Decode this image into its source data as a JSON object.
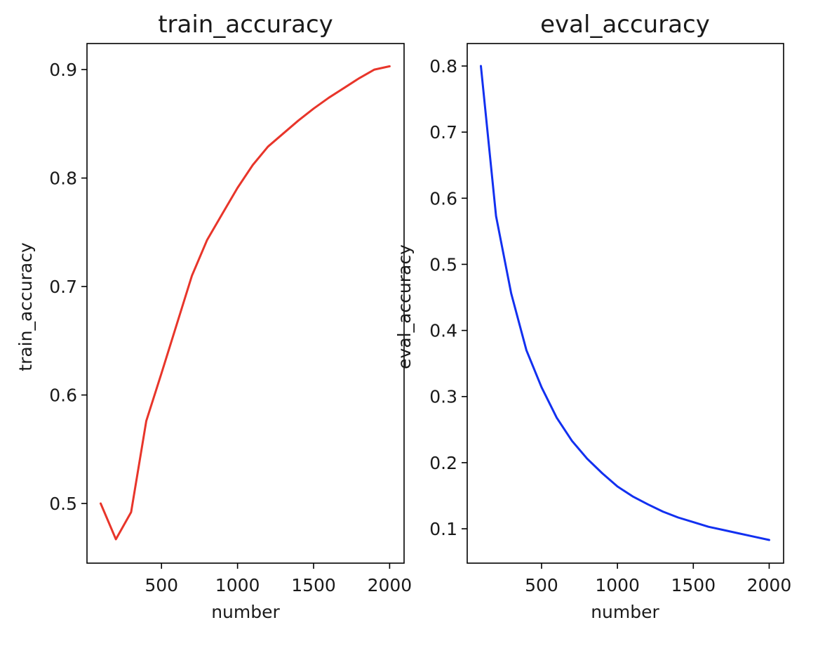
{
  "chart_data": [
    {
      "type": "line",
      "title": "train_accuracy",
      "xlabel": "number",
      "ylabel": "train_accuracy",
      "xlim": [
        10,
        2095
      ],
      "ylim": [
        0.445,
        0.924
      ],
      "xticks": [
        500,
        1000,
        1500,
        2000
      ],
      "yticks": [
        0.5,
        0.6,
        0.7,
        0.8,
        0.9
      ],
      "xtick_labels": [
        "500",
        "1000",
        "1500",
        "2000"
      ],
      "ytick_labels": [
        "0.5",
        "0.6",
        "0.7",
        "0.8",
        "0.9"
      ],
      "grid": false,
      "series": [
        {
          "color": "#e8352a",
          "x": [
            100,
            200,
            300,
            400,
            500,
            600,
            700,
            800,
            900,
            1000,
            1100,
            1200,
            1300,
            1400,
            1500,
            1600,
            1700,
            1800,
            1900,
            2000
          ],
          "y": [
            0.5,
            0.467,
            0.492,
            0.576,
            0.62,
            0.665,
            0.71,
            0.743,
            0.767,
            0.791,
            0.812,
            0.829,
            0.841,
            0.853,
            0.864,
            0.874,
            0.883,
            0.892,
            0.9,
            0.903
          ]
        }
      ]
    },
    {
      "type": "line",
      "title": "eval_accuracy",
      "xlabel": "number",
      "ylabel": "eval_accuracy",
      "xlim": [
        10,
        2095
      ],
      "ylim": [
        0.048,
        0.834
      ],
      "xticks": [
        500,
        1000,
        1500,
        2000
      ],
      "yticks": [
        0.1,
        0.2,
        0.3,
        0.4,
        0.5,
        0.6,
        0.7,
        0.8
      ],
      "xtick_labels": [
        "500",
        "1000",
        "1500",
        "2000"
      ],
      "ytick_labels": [
        "0.1",
        "0.2",
        "0.3",
        "0.4",
        "0.5",
        "0.6",
        "0.7",
        "0.8"
      ],
      "grid": false,
      "series": [
        {
          "color": "#1230f0",
          "x": [
            100,
            200,
            300,
            400,
            500,
            600,
            700,
            800,
            900,
            1000,
            1100,
            1200,
            1300,
            1400,
            1500,
            1600,
            1700,
            1800,
            1900,
            2000
          ],
          "y": [
            0.8,
            0.573,
            0.456,
            0.37,
            0.314,
            0.268,
            0.233,
            0.206,
            0.184,
            0.164,
            0.149,
            0.137,
            0.126,
            0.117,
            0.11,
            0.103,
            0.098,
            0.093,
            0.088,
            0.083
          ]
        }
      ]
    }
  ]
}
